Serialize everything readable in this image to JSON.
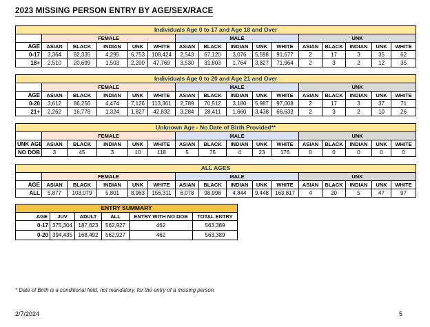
{
  "page": {
    "title": "2023 MISSING PERSON ENTRY BY AGE/SEX/RACE",
    "footnote": "* Date of Birth is a conditional field, not mandatory, for the entry of a missing person.",
    "footer_date": "2/7/2024",
    "footer_page_number": "5"
  },
  "colors": {
    "table_title_bg": "#FFE699",
    "table_title_text": "#17375D",
    "female_bg": "#FCE4D6",
    "male_bg": "#D9E1F2",
    "unk_bg": "#D9D9D9",
    "summary_title_bg": "#F3C242",
    "border": "#000000"
  },
  "group_columns": [
    "FEMALE",
    "MALE",
    "UNK"
  ],
  "race_columns": [
    "ASIAN",
    "BLACK",
    "INDIAN",
    "UNK",
    "WHITE"
  ],
  "demographic_tables": [
    {
      "title": "Individuals Age 0 to 17 and Age 18 and Over",
      "age_header": "AGE",
      "rows": [
        {
          "age": "0-17",
          "values": [
            "3,364",
            "82,335",
            "4,295",
            "6,753",
            "108,424",
            "2,543",
            "67,120",
            "3,076",
            "5,598",
            "91,677",
            "2",
            "17",
            "3",
            "35",
            "62"
          ]
        },
        {
          "age": "18+",
          "values": [
            "2,510",
            "20,699",
            "1,503",
            "2,200",
            "47,769",
            "3,530",
            "31,803",
            "1,764",
            "3,827",
            "71,964",
            "2",
            "3",
            "2",
            "12",
            "35"
          ]
        }
      ]
    },
    {
      "title": "Individuals Age 0 to 20 and Age 21 and Over",
      "age_header": "AGE",
      "rows": [
        {
          "age": "0-20",
          "values": [
            "3,612",
            "86,256",
            "4,474",
            "7,126",
            "113,361",
            "2,789",
            "70,512",
            "3,180",
            "5,987",
            "97,008",
            "2",
            "17",
            "3",
            "37",
            "71"
          ]
        },
        {
          "age": "21+",
          "values": [
            "2,262",
            "16,778",
            "1,324",
            "1,827",
            "42,832",
            "3,284",
            "28,411",
            "1,660",
            "3,438",
            "66,633",
            "2",
            "3",
            "2",
            "10",
            "26"
          ]
        }
      ]
    },
    {
      "title": "Unknown Age - No Date of Birth Provided**",
      "age_header": "UNK AGE",
      "rows": [
        {
          "age": "NO DOB",
          "values": [
            "3",
            "45",
            "3",
            "10",
            "118",
            "5",
            "75",
            "4",
            "23",
            "176",
            "0",
            "0",
            "0",
            "0",
            "0"
          ]
        }
      ]
    },
    {
      "title": "ALL AGES",
      "age_header": "AGE",
      "rows": [
        {
          "age": "ALL",
          "values": [
            "5,877",
            "103,079",
            "5,801",
            "8,963",
            "156,311",
            "6,078",
            "98,998",
            "4,844",
            "9,448",
            "163,817",
            "4",
            "20",
            "5",
            "47",
            "97"
          ]
        }
      ]
    }
  ],
  "entry_summary": {
    "title": "ENTRY SUMMARY",
    "headers": [
      "AGE",
      "JUV",
      "ADULT",
      "ALL",
      "ENTRY WITH NO DOB",
      "TOTAL ENTRY"
    ],
    "rows": [
      [
        "0-17",
        "375,304",
        "187,623",
        "562,927",
        "462",
        "563,389"
      ],
      [
        "0-20",
        "394,435",
        "168,492",
        "562,927",
        "462",
        "563,389"
      ]
    ]
  }
}
